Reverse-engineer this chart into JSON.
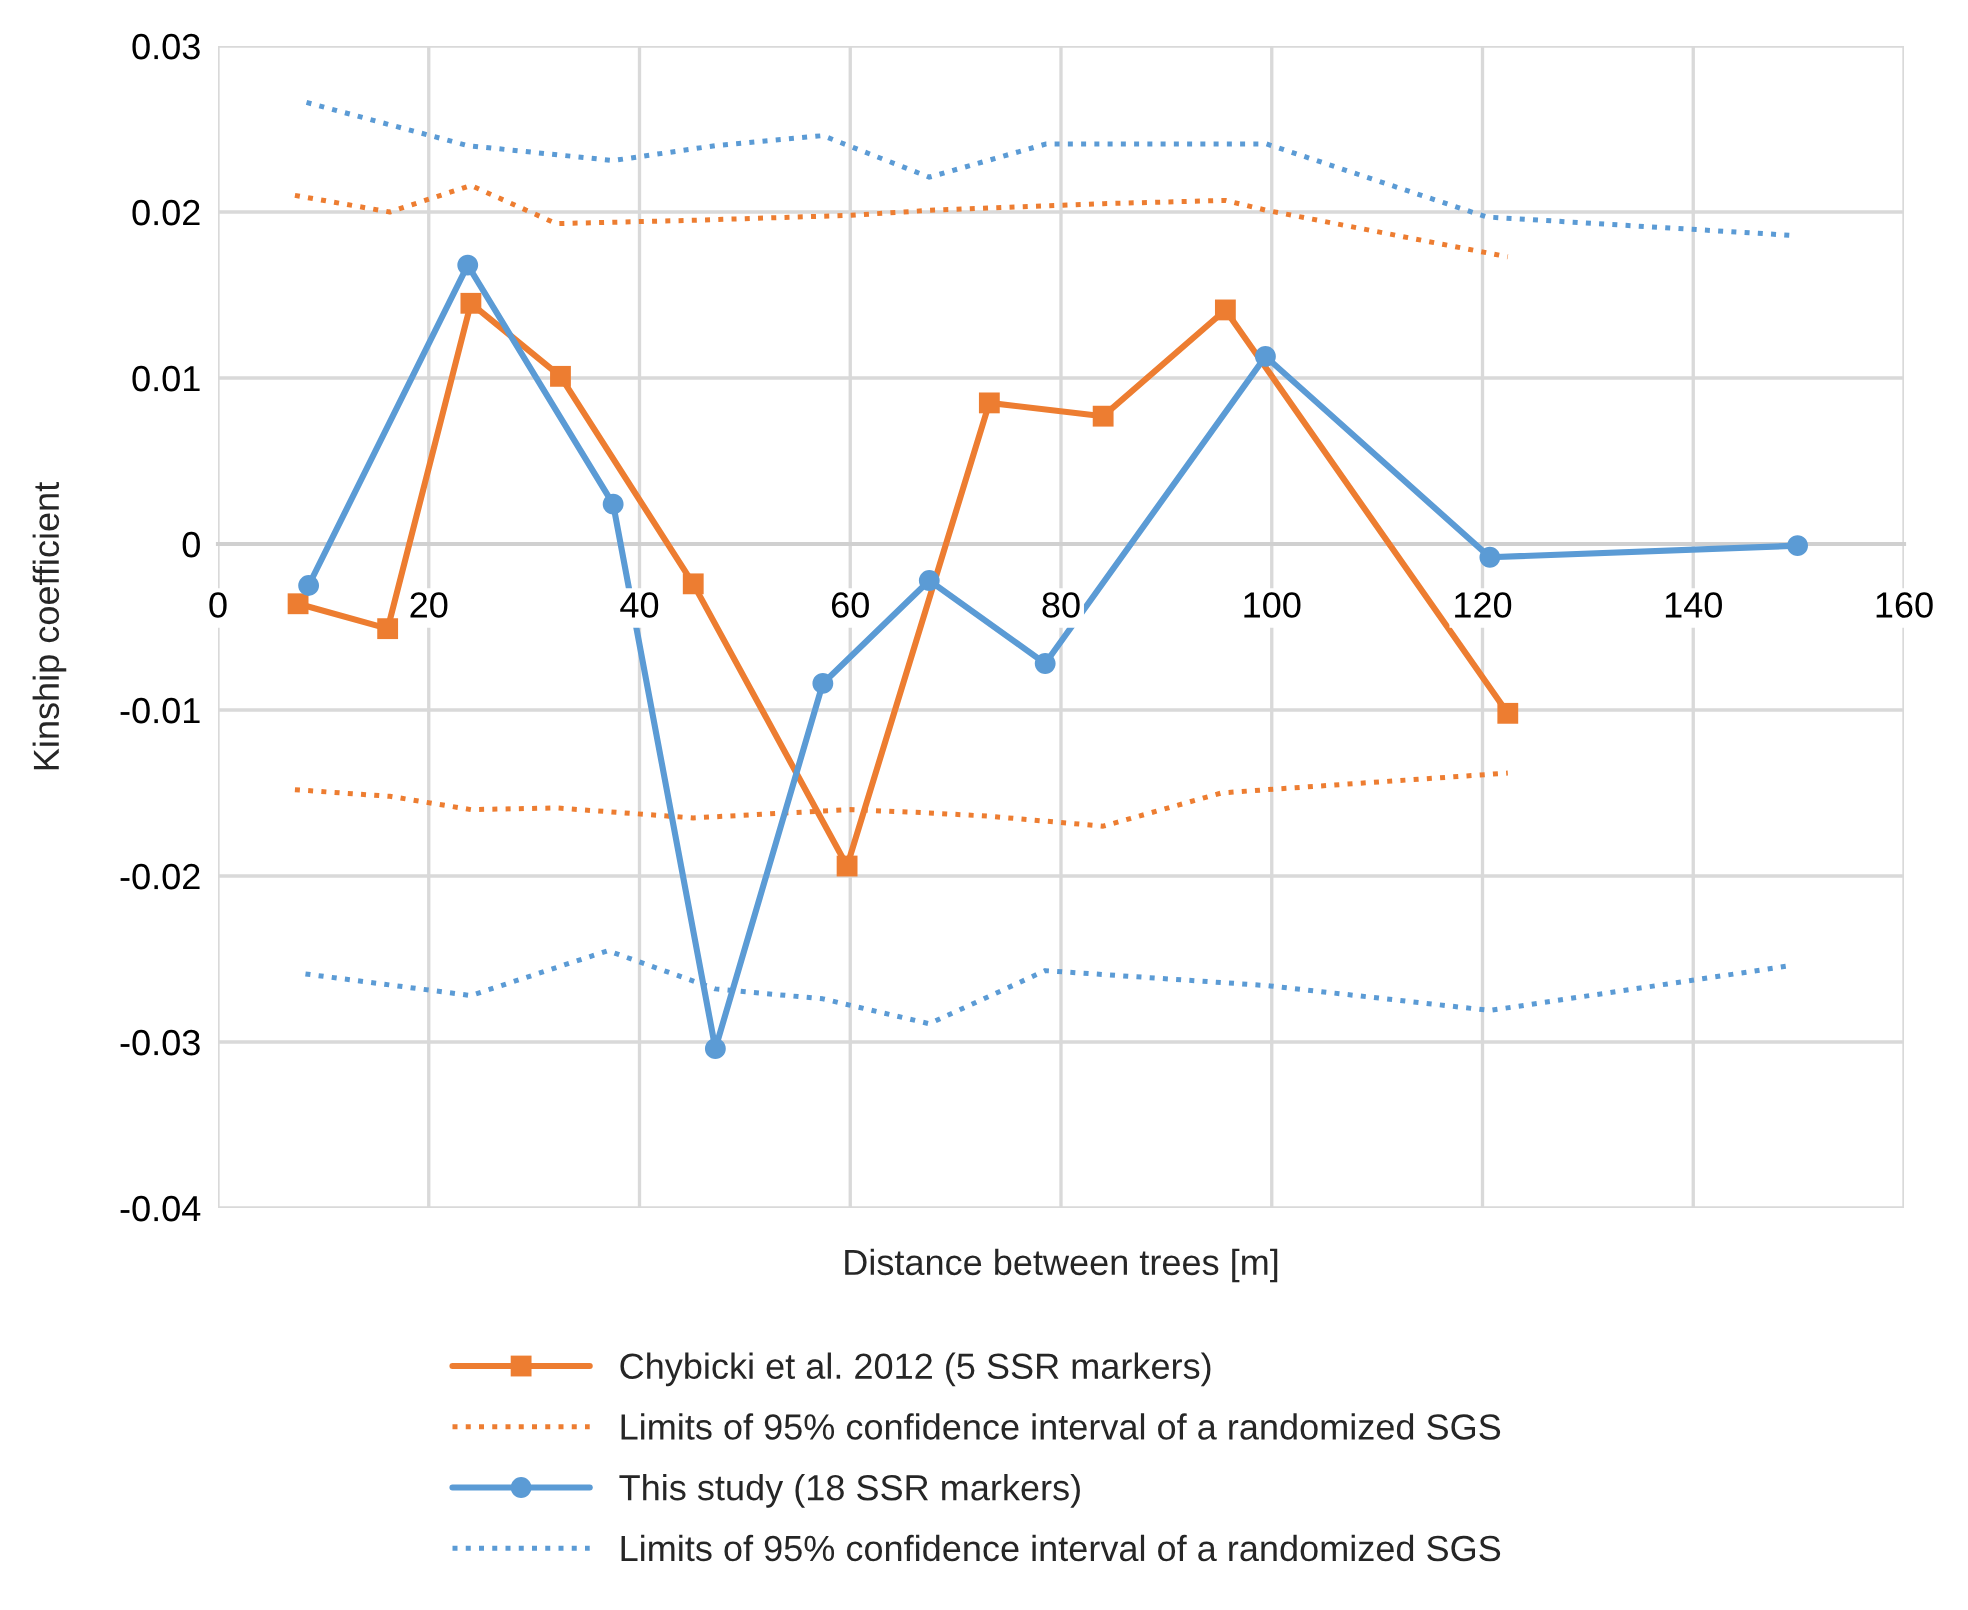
{
  "chart_data": {
    "type": "line",
    "xlabel": "Distance between trees [m]",
    "ylabel": "Kinship coefficient",
    "xlim": [
      0,
      160
    ],
    "xticks": [
      0,
      20,
      40,
      60,
      80,
      100,
      120,
      140,
      160
    ],
    "ylim": [
      -0.04,
      0.03
    ],
    "yticks": [
      {
        "value": -0.04,
        "label": "-0.04"
      },
      {
        "value": -0.03,
        "label": "-0.03"
      },
      {
        "value": -0.02,
        "label": "-0.02"
      },
      {
        "value": -0.01,
        "label": "-0.01"
      },
      {
        "value": 0,
        "label": "0"
      },
      {
        "value": 0.01,
        "label": "0.01"
      },
      {
        "value": 0.02,
        "label": "0.02"
      },
      {
        "value": 0.03,
        "label": "0.03"
      }
    ],
    "grid": true,
    "legend": "bottom",
    "series": [
      {
        "name": "Chybicki et al. 2012 (5 SSR markers)",
        "color": "#ed7d31",
        "marker": "square",
        "line_style": "solid",
        "x": [
          7.6,
          16.1,
          24.0,
          32.5,
          45.1,
          59.7,
          73.2,
          84.0,
          95.6,
          122.4
        ],
        "values": [
          -0.0036,
          -0.0051,
          0.0145,
          0.0101,
          -0.0024,
          -0.0194,
          0.0085,
          0.0077,
          0.0141,
          -0.0102
        ]
      },
      {
        "name": "Limits of 95% confidence interval of a randomized SGS",
        "color": "#ed7d31",
        "marker": "none",
        "line_style": "dotted",
        "x": [
          7.3,
          16.3,
          24.0,
          32.1,
          45.1,
          60.0,
          67.5,
          84.0,
          95.6,
          99.5,
          122.4
        ],
        "values": [
          0.021,
          0.02,
          0.0216,
          0.0193,
          0.0195,
          0.0198,
          0.0201,
          0.0205,
          0.0207,
          0.0201,
          0.0173
        ]
      },
      {
        "color": "#ed7d31",
        "marker": "none",
        "line_style": "dotted",
        "x": [
          7.3,
          16.3,
          24.0,
          32.1,
          45.1,
          60.0,
          67.5,
          73.2,
          84.0,
          95.2,
          99.5,
          122.4
        ],
        "values": [
          -0.0148,
          -0.0152,
          -0.016,
          -0.0159,
          -0.0165,
          -0.016,
          -0.0162,
          -0.0164,
          -0.017,
          -0.015,
          -0.0148,
          -0.0138
        ]
      },
      {
        "name": "This study (18 SSR markers)",
        "color": "#5b9bd5",
        "marker": "circle",
        "line_style": "solid",
        "x": [
          8.6,
          23.7,
          37.5,
          47.2,
          57.4,
          67.5,
          78.5,
          99.4,
          120.7,
          149.9
        ],
        "values": [
          -0.0025,
          0.0168,
          0.0024,
          -0.0304,
          -0.0084,
          -0.0022,
          -0.0072,
          0.0113,
          -0.0008,
          -0.0001
        ]
      },
      {
        "name": "Limits of 95% confidence interval of a randomized SGS",
        "color": "#5b9bd5",
        "marker": "none",
        "line_style": "dotted",
        "x": [
          8.4,
          23.7,
          37.5,
          47.2,
          57.4,
          67.5,
          78.6,
          99.5,
          120.4,
          149.2
        ],
        "values": [
          0.0266,
          0.024,
          0.0231,
          0.024,
          0.0246,
          0.0221,
          0.0241,
          0.0241,
          0.0197,
          0.0186
        ]
      },
      {
        "color": "#5b9bd5",
        "marker": "none",
        "line_style": "dotted",
        "x": [
          8.3,
          24.0,
          37.0,
          47.2,
          57.4,
          67.5,
          78.5,
          99.5,
          120.7,
          149.2
        ],
        "values": [
          -0.0259,
          -0.0272,
          -0.0245,
          -0.0268,
          -0.0274,
          -0.0289,
          -0.0257,
          -0.0266,
          -0.0281,
          -0.0254
        ]
      }
    ]
  }
}
